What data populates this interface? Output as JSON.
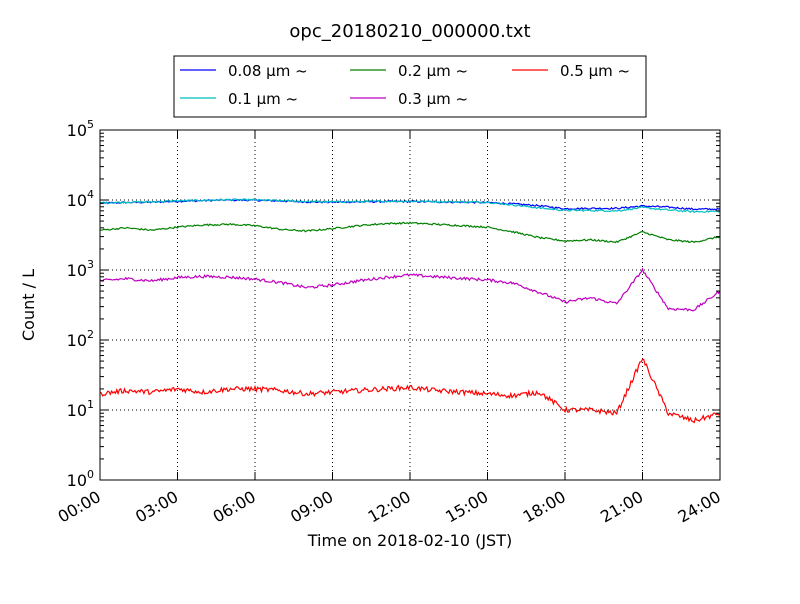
{
  "chart_data": {
    "type": "line",
    "title": "opc_20180210_000000.txt",
    "xlabel": "Time on 2018-02-10 (JST)",
    "ylabel": "Count / L",
    "y_scale": "log",
    "ylim": [
      1,
      100000
    ],
    "xlim": [
      "00:00",
      "24:00"
    ],
    "x_ticks": [
      "00:00",
      "03:00",
      "06:00",
      "09:00",
      "12:00",
      "15:00",
      "18:00",
      "21:00",
      "24:00"
    ],
    "y_ticks": [
      {
        "base": "10",
        "exp": "0",
        "value": 1
      },
      {
        "base": "10",
        "exp": "1",
        "value": 10
      },
      {
        "base": "10",
        "exp": "2",
        "value": 100
      },
      {
        "base": "10",
        "exp": "3",
        "value": 1000
      },
      {
        "base": "10",
        "exp": "4",
        "value": 10000
      },
      {
        "base": "10",
        "exp": "5",
        "value": 100000
      }
    ],
    "grid": true,
    "legend_placement": "top-center, above plot",
    "legend_columns": 3,
    "x": [
      "00:00",
      "01:00",
      "02:00",
      "03:00",
      "04:00",
      "05:00",
      "06:00",
      "07:00",
      "08:00",
      "09:00",
      "10:00",
      "11:00",
      "12:00",
      "13:00",
      "14:00",
      "15:00",
      "16:00",
      "17:00",
      "18:00",
      "19:00",
      "20:00",
      "21:00",
      "22:00",
      "23:00",
      "24:00"
    ],
    "series": [
      {
        "name": "0.08 μm ~",
        "color": "#0000ff",
        "values": [
          9000,
          9200,
          9300,
          9600,
          9800,
          10000,
          9900,
          9700,
          9400,
          9300,
          9400,
          9500,
          9500,
          9400,
          9300,
          9200,
          8800,
          8300,
          7500,
          7600,
          7600,
          8200,
          7900,
          7400,
          7400
        ]
      },
      {
        "name": "0.1 μm ~",
        "color": "#00bfbf",
        "values": [
          9100,
          9300,
          9400,
          9700,
          9900,
          10100,
          10000,
          9800,
          9500,
          9400,
          9500,
          9600,
          9600,
          9500,
          9400,
          9300,
          8500,
          7700,
          7100,
          7100,
          7000,
          7800,
          7200,
          6800,
          6900
        ]
      },
      {
        "name": "0.2 μm ~",
        "color": "#008000",
        "values": [
          3700,
          4000,
          3700,
          4100,
          4400,
          4500,
          4300,
          3800,
          3600,
          3900,
          4300,
          4600,
          4700,
          4500,
          4300,
          4100,
          3500,
          2900,
          2600,
          2700,
          2500,
          3500,
          2700,
          2500,
          3000
        ]
      },
      {
        "name": "0.3 μm ~",
        "color": "#bf00bf",
        "values": [
          700,
          750,
          700,
          780,
          810,
          790,
          740,
          660,
          560,
          610,
          700,
          780,
          850,
          800,
          760,
          720,
          650,
          480,
          350,
          400,
          330,
          1000,
          280,
          270,
          500
        ]
      },
      {
        "name": "0.5 μm ~",
        "color": "#ff0000",
        "values": [
          17,
          19,
          18,
          20,
          18,
          20,
          20,
          19,
          17,
          18,
          19,
          20,
          21,
          19,
          18,
          17,
          16,
          18,
          10,
          10,
          9,
          55,
          9,
          7,
          9
        ]
      }
    ]
  }
}
